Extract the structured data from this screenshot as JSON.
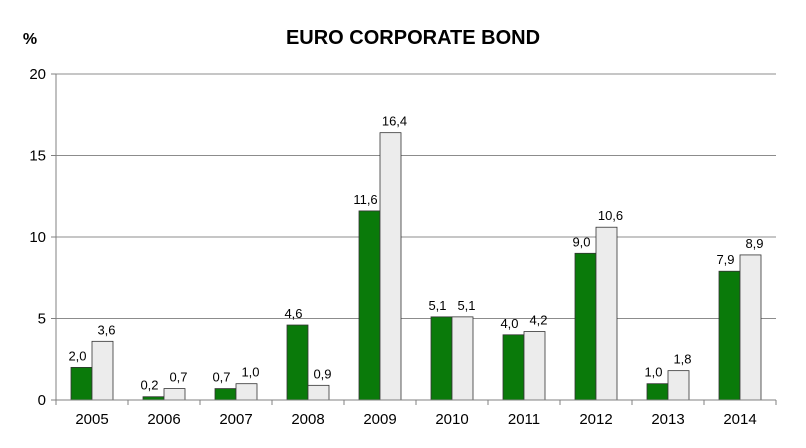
{
  "chart_data": {
    "type": "bar",
    "title": "EURO CORPORATE BOND",
    "ylabel": "%",
    "xlabel": "",
    "ylim": [
      0,
      20
    ],
    "yticks": [
      0,
      5,
      10,
      15,
      20
    ],
    "grid": true,
    "legend": "none",
    "decimal_separator": ",",
    "categories": [
      "2005",
      "2006",
      "2007",
      "2008",
      "2009",
      "2010",
      "2011",
      "2012",
      "2013",
      "2014"
    ],
    "series": [
      {
        "color": "#0a7a0a",
        "values": [
          2.0,
          0.2,
          0.7,
          4.6,
          11.6,
          5.1,
          4.0,
          9.0,
          1.0,
          7.9
        ]
      },
      {
        "color": "#ececec",
        "values": [
          3.6,
          0.7,
          1.0,
          0.9,
          16.4,
          5.1,
          4.2,
          10.6,
          1.8,
          8.9
        ]
      }
    ]
  }
}
